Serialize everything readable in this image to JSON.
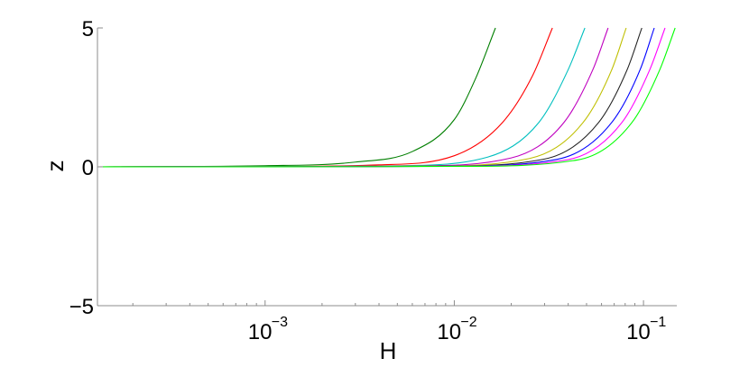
{
  "chart_data": {
    "type": "line",
    "title": "",
    "xlabel": "H",
    "ylabel": "z",
    "xscale": "log",
    "xlim": [
      0.00013,
      0.15
    ],
    "ylim": [
      -5,
      5
    ],
    "grid": false,
    "legend": "none",
    "yticks": [
      {
        "value": -5,
        "label": "−5"
      },
      {
        "value": 0,
        "label": "0"
      },
      {
        "value": 5,
        "label": "5"
      }
    ],
    "xticks": [
      {
        "value": 0.001,
        "base": "10",
        "exp": "−3"
      },
      {
        "value": 0.01,
        "base": "10",
        "exp": "−2"
      },
      {
        "value": 0.1,
        "base": "10",
        "exp": "−1"
      }
    ],
    "series": [
      {
        "color": "#007f00",
        "x": [
          0.00013,
          0.001,
          0.003,
          0.006,
          0.01,
          0.013,
          0.0165
        ],
        "y": [
          0,
          0.04,
          0.17,
          0.55,
          1.7,
          3.2,
          5
        ]
      },
      {
        "color": "#ff0000",
        "x": [
          0.00013,
          0.001,
          0.004,
          0.01,
          0.018,
          0.026,
          0.033
        ],
        "y": [
          0,
          0.01,
          0.07,
          0.4,
          1.6,
          3.3,
          5
        ]
      },
      {
        "color": "#00bfbf",
        "x": [
          0.00013,
          0.001,
          0.005,
          0.015,
          0.028,
          0.04,
          0.049
        ],
        "y": [
          0,
          0.005,
          0.04,
          0.35,
          1.6,
          3.5,
          5
        ]
      },
      {
        "color": "#bf00bf",
        "x": [
          0.00013,
          0.001,
          0.006,
          0.02,
          0.038,
          0.054,
          0.065
        ],
        "y": [
          0,
          0.004,
          0.03,
          0.32,
          1.6,
          3.5,
          5
        ]
      },
      {
        "color": "#bfbf00",
        "x": [
          0.00013,
          0.001,
          0.007,
          0.025,
          0.048,
          0.068,
          0.081
        ],
        "y": [
          0,
          0.003,
          0.025,
          0.3,
          1.6,
          3.5,
          5
        ]
      },
      {
        "color": "#222222",
        "x": [
          0.00013,
          0.001,
          0.008,
          0.03,
          0.058,
          0.082,
          0.098
        ],
        "y": [
          0,
          0.002,
          0.02,
          0.28,
          1.6,
          3.5,
          5
        ]
      },
      {
        "color": "#0000ff",
        "x": [
          0.00013,
          0.001,
          0.009,
          0.035,
          0.068,
          0.096,
          0.114
        ],
        "y": [
          0,
          0.002,
          0.02,
          0.27,
          1.6,
          3.5,
          5
        ]
      },
      {
        "color": "#ff00ff",
        "x": [
          0.00013,
          0.001,
          0.01,
          0.04,
          0.077,
          0.108,
          0.13
        ],
        "y": [
          0,
          0.002,
          0.02,
          0.26,
          1.6,
          3.5,
          5
        ]
      },
      {
        "color": "#00ff00",
        "x": [
          0.00013,
          0.001,
          0.011,
          0.045,
          0.087,
          0.122,
          0.147
        ],
        "y": [
          0,
          0.001,
          0.018,
          0.25,
          1.6,
          3.5,
          5
        ]
      }
    ]
  }
}
